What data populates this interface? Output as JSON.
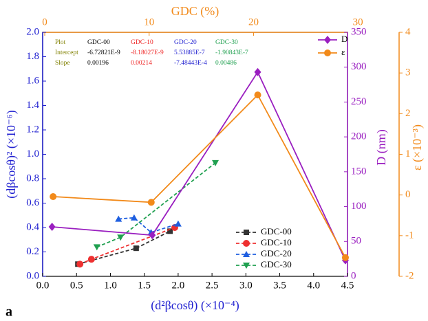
{
  "chart_data": {
    "type": "line",
    "panel_label": "a",
    "x_label": "(d²βcosθ) (×10⁻⁴)",
    "x2_label": "GDC (%)",
    "y_label": "(dβcosθ)² (×10⁻⁶)",
    "y2_label": "D (nm)",
    "y3_label": "ε (×10⁻³)",
    "xlim": [
      0,
      4.5
    ],
    "xticks": [
      {
        "value": 0,
        "label": "0.0"
      },
      {
        "value": 0.5,
        "label": "0.5"
      },
      {
        "value": 1,
        "label": "1.0"
      },
      {
        "value": 1.5,
        "label": "1.5"
      },
      {
        "value": 2,
        "label": "2.0"
      },
      {
        "value": 2.5,
        "label": "2.5"
      },
      {
        "value": 3,
        "label": "3.0"
      },
      {
        "value": 3.5,
        "label": "3.5"
      },
      {
        "value": 4,
        "label": "4.0"
      },
      {
        "value": 4.5,
        "label": "4.5"
      }
    ],
    "x2lim": [
      -0.2,
      29
    ],
    "x2ticks": [
      0,
      10,
      20,
      30
    ],
    "ylim": [
      0,
      2
    ],
    "yticks": [
      {
        "value": 0,
        "label": "0.0"
      },
      {
        "value": 0.2,
        "label": "0.2"
      },
      {
        "value": 0.4,
        "label": "0.4"
      },
      {
        "value": 0.6,
        "label": "0.6"
      },
      {
        "value": 0.8,
        "label": "0.8"
      },
      {
        "value": 1,
        "label": "1.0"
      },
      {
        "value": 1.2,
        "label": "1.2"
      },
      {
        "value": 1.4,
        "label": "1.4"
      },
      {
        "value": 1.6,
        "label": "1.6"
      },
      {
        "value": 1.8,
        "label": "1.8"
      },
      {
        "value": 2,
        "label": "2.0"
      }
    ],
    "y2lim": [
      0,
      350
    ],
    "y2ticks": [
      0,
      50,
      100,
      150,
      200,
      250,
      300,
      350
    ],
    "y3lim": [
      -2,
      4
    ],
    "y3ticks": [
      -2,
      -1,
      0,
      1,
      2,
      3,
      4
    ],
    "colors": {
      "y": "#1f1fd0",
      "y2": "#9a1fc0",
      "y3": "#f28a1a",
      "x2": "#f28a1a"
    },
    "series": [
      {
        "name": "GDC-00",
        "color": "#333333",
        "marker": "square",
        "dashed": true,
        "x": [
          0.52,
          1.38,
          1.88
        ],
        "values": [
          0.1,
          0.23,
          0.37
        ]
      },
      {
        "name": "GDC-10",
        "color": "#ee3030",
        "marker": "circle",
        "dashed": true,
        "x": [
          0.55,
          0.72,
          1.95
        ],
        "values": [
          0.1,
          0.14,
          0.4
        ]
      },
      {
        "name": "GDC-20",
        "color": "#1f5fe0",
        "marker": "triangle",
        "dashed": true,
        "x": [
          1.12,
          1.35,
          1.6,
          2.0
        ],
        "values": [
          0.47,
          0.48,
          0.36,
          0.43
        ]
      },
      {
        "name": "GDC-30",
        "color": "#20a050",
        "marker": "triangle-down",
        "dashed": true,
        "x": [
          0.8,
          1.15,
          2.55
        ],
        "values": [
          0.24,
          0.32,
          0.93
        ]
      },
      {
        "name": "D",
        "color": "#9a1fc0",
        "marker": "diamond",
        "dashed": false,
        "axis": "y2",
        "xaxis": "x2",
        "x": [
          0.7,
          10.3,
          20.4,
          28.8
        ],
        "values": [
          71,
          59,
          293,
          23
        ]
      },
      {
        "name": "ε",
        "color": "#f28a1a",
        "marker": "circle",
        "dashed": false,
        "axis": "y3",
        "xaxis": "x2",
        "x": [
          0.8,
          10.2,
          20.4,
          28.8
        ],
        "values": [
          -0.04,
          -0.18,
          2.46,
          -1.54
        ]
      }
    ],
    "fit_table": {
      "header": [
        "Plot",
        "GDC-00",
        "GDC-10",
        "GDC-20",
        "GDC-30"
      ],
      "rows": [
        [
          "Intercept",
          "-6.72821E-9",
          "-8.18027E-9",
          "5.53885E-7",
          "-1.90843E-7"
        ],
        [
          "Slope",
          "0.00196",
          "0.00214",
          "-7.48443E-4",
          "0.00486"
        ]
      ],
      "colors": [
        "#808000",
        "#000000",
        "#ee2020",
        "#1f1fd0",
        "#20a050"
      ]
    }
  }
}
